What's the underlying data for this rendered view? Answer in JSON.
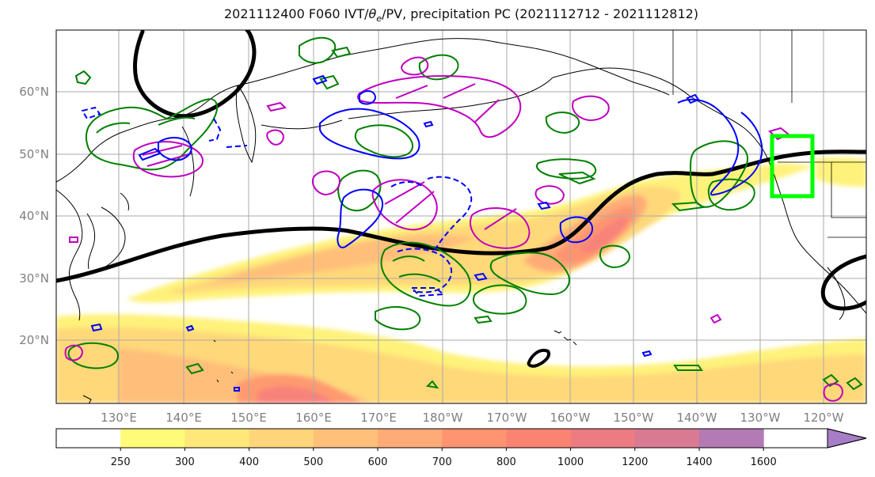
{
  "title": {
    "main": "2021112400 F060 IVT/",
    "theta_symbol": "θ",
    "theta_sub": "e",
    "rest": "/PV, precipitation PC (2021112712 - 2021112812)"
  },
  "map": {
    "lat_labels": [
      "60°N",
      "50°N",
      "40°N",
      "30°N",
      "20°N"
    ],
    "lon_labels": [
      "130°E",
      "140°E",
      "150°E",
      "160°E",
      "170°E",
      "180°W",
      "170°W",
      "160°W",
      "150°W",
      "140°W",
      "130°W",
      "120°W"
    ]
  },
  "colorbar": {
    "ticks": [
      "250",
      "300",
      "400",
      "500",
      "600",
      "700",
      "800",
      "1000",
      "1200",
      "1400",
      "1600"
    ],
    "colors": [
      "#ffffff",
      "#fffb78",
      "#ffe77a",
      "#ffd57a",
      "#ffc07a",
      "#ffab78",
      "#ff9470",
      "#fa8372",
      "#ec7b82",
      "#d97a93",
      "#b37ab5",
      "#a77dc7"
    ]
  },
  "overlays": {
    "target_box_color": "#00ff00",
    "theta_color": "#000000",
    "pv_color": "#c000c0",
    "precip_color": "#008000",
    "ivt_neg_color": "#0000ff"
  }
}
